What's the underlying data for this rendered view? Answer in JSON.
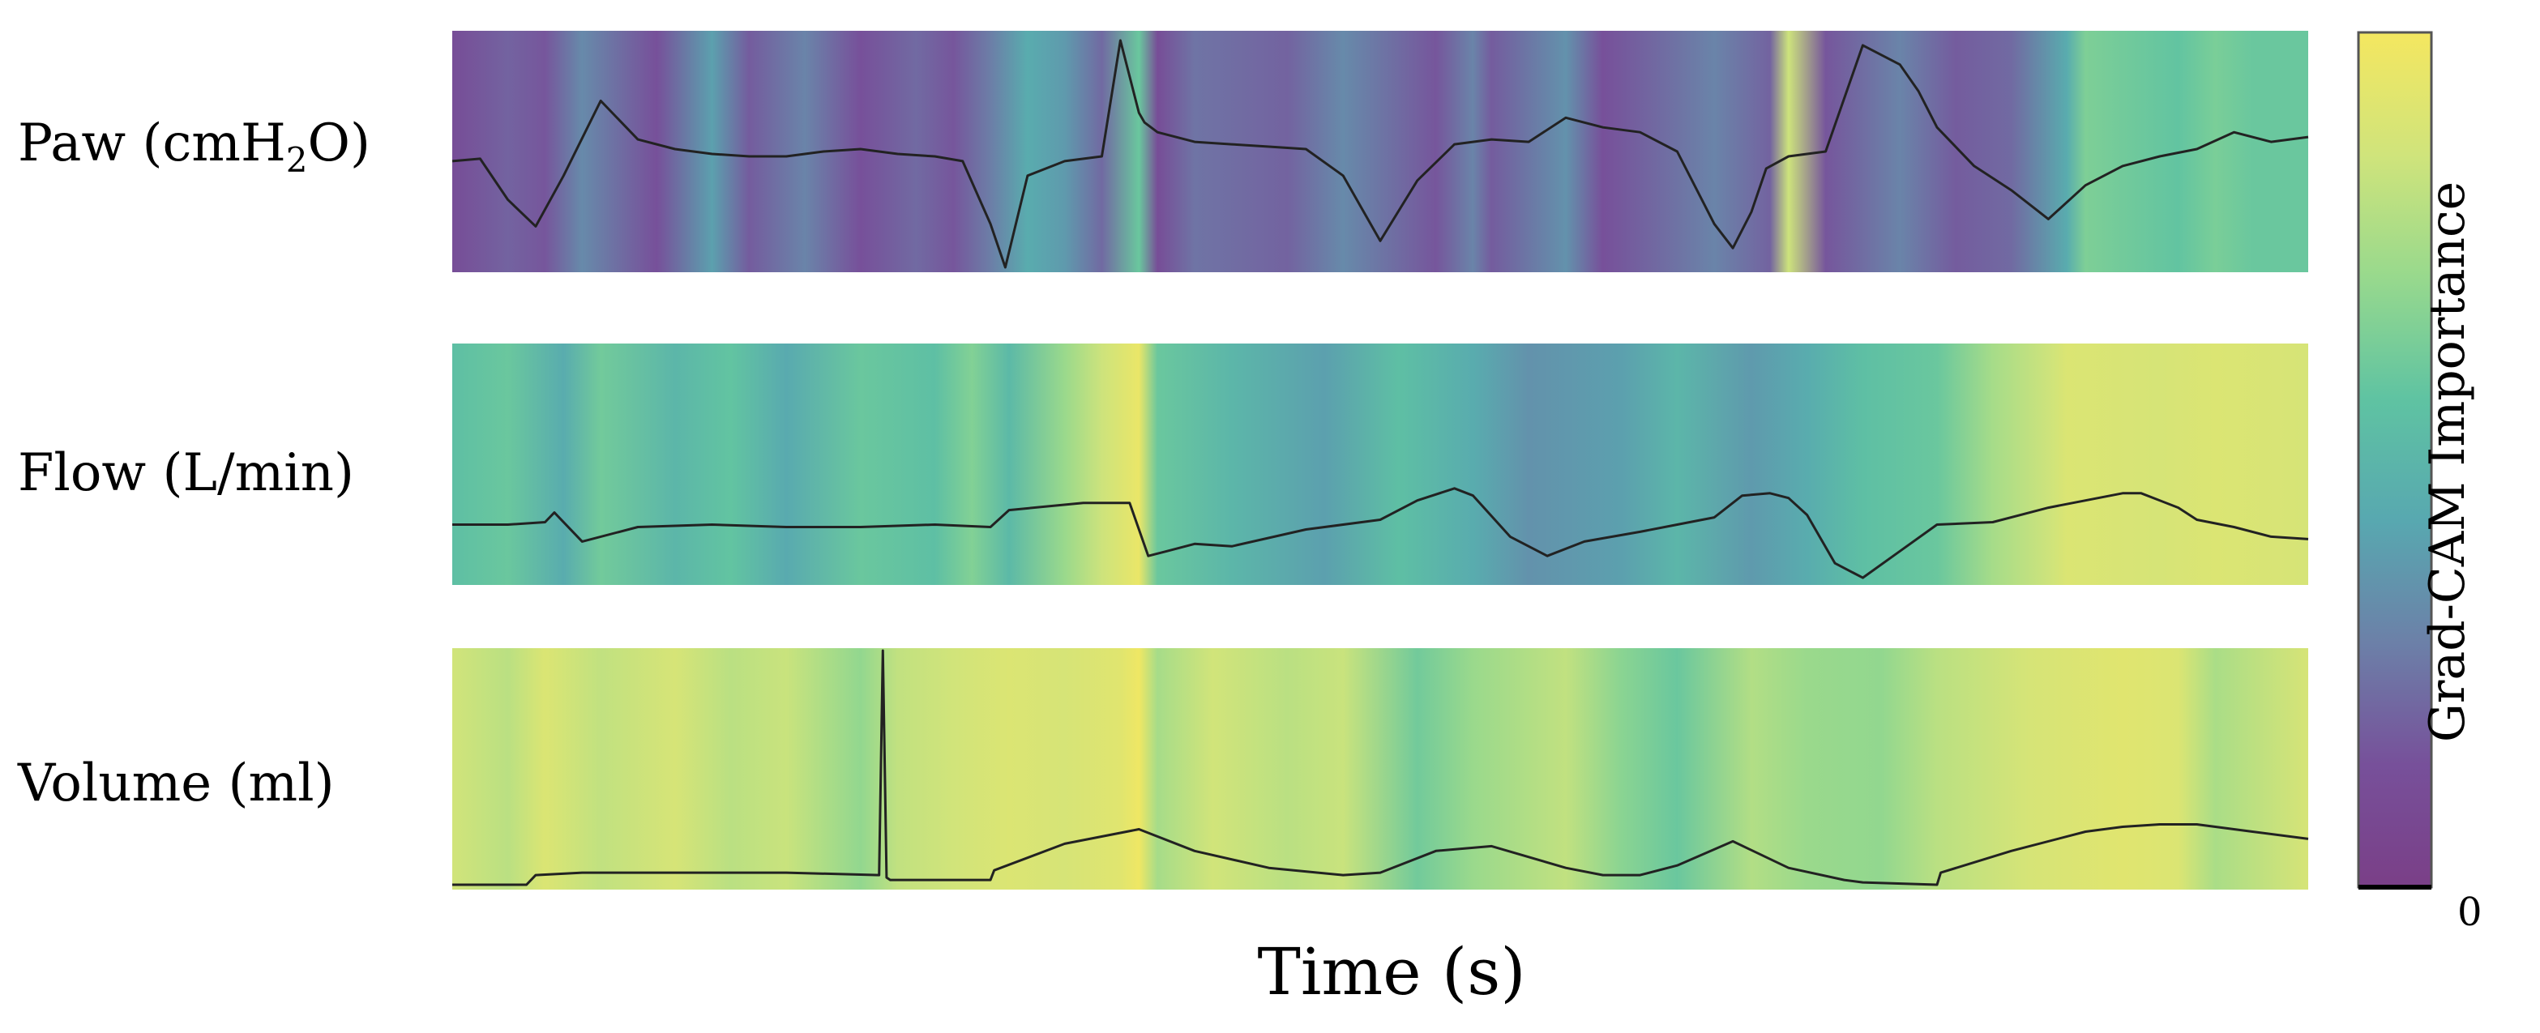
{
  "chart_data": [
    {
      "type": "line",
      "title": "",
      "ylabel_prefix": "Paw (cmH",
      "ylabel_sub": "2",
      "ylabel_suffix": "O)",
      "xlabel": "Time (s)",
      "x_range": [
        0,
        100
      ],
      "ylim": [
        0,
        10
      ],
      "x": [
        0,
        1.5,
        3,
        4.5,
        6,
        8,
        10,
        12,
        14,
        16,
        18,
        20,
        22,
        24,
        26,
        27.5,
        29,
        29.8,
        31,
        33,
        35,
        36,
        37,
        37.3,
        38,
        40,
        42,
        44,
        46,
        48,
        50,
        52,
        54,
        56,
        58,
        60,
        62,
        64,
        66,
        68,
        69,
        70,
        70.8,
        72,
        74,
        76,
        78,
        79,
        80,
        82,
        84,
        86,
        88,
        90,
        92,
        94,
        96,
        98,
        100
      ],
      "values": [
        4.6,
        4.7,
        3.0,
        1.9,
        4.0,
        7.1,
        5.5,
        5.1,
        4.9,
        4.8,
        4.8,
        5.0,
        5.1,
        4.9,
        4.8,
        4.6,
        2.0,
        0.2,
        4.0,
        4.6,
        4.8,
        9.6,
        6.6,
        6.2,
        5.8,
        5.4,
        5.3,
        5.2,
        5.1,
        4.0,
        1.3,
        3.8,
        5.3,
        5.5,
        5.4,
        6.4,
        6.0,
        5.8,
        5.0,
        2.0,
        1.0,
        2.5,
        4.3,
        4.8,
        5.0,
        9.4,
        8.6,
        7.5,
        6.0,
        4.4,
        3.4,
        2.2,
        3.6,
        4.4,
        4.8,
        5.1,
        5.8,
        5.4,
        5.6
      ],
      "importance_x": [
        0,
        3,
        5,
        7,
        11,
        14,
        16,
        19,
        22,
        25,
        27,
        29,
        31,
        33,
        35,
        37,
        38,
        40,
        45,
        48,
        53,
        55,
        56,
        60,
        62,
        68,
        71,
        72,
        74,
        78,
        81,
        84,
        87,
        88,
        90,
        93,
        95,
        97,
        100
      ],
      "importance_values": [
        0.12,
        0.2,
        0.16,
        0.32,
        0.14,
        0.4,
        0.18,
        0.3,
        0.14,
        0.22,
        0.16,
        0.28,
        0.45,
        0.38,
        0.22,
        0.6,
        0.12,
        0.25,
        0.2,
        0.32,
        0.16,
        0.3,
        0.18,
        0.35,
        0.14,
        0.3,
        0.2,
        0.85,
        0.16,
        0.3,
        0.18,
        0.22,
        0.45,
        0.65,
        0.62,
        0.58,
        0.64,
        0.6,
        0.6
      ]
    },
    {
      "type": "line",
      "title": "",
      "ylabel": "Flow (L/min)",
      "xlabel": "Time (s)",
      "x_range": [
        0,
        100
      ],
      "ylim": [
        0,
        10
      ],
      "x": [
        0,
        3,
        5,
        5.5,
        7,
        10,
        14,
        18,
        22,
        26,
        29,
        30,
        34,
        36.5,
        37.5,
        38.5,
        40,
        42,
        46,
        50,
        52,
        54,
        55,
        57,
        59,
        61,
        64,
        66,
        68,
        69.5,
        71,
        72,
        73,
        74.5,
        76,
        78,
        80,
        83,
        86,
        88,
        90,
        91,
        93,
        94,
        96,
        98,
        100
      ],
      "values": [
        2.5,
        2.5,
        2.6,
        3.0,
        1.8,
        2.4,
        2.5,
        2.4,
        2.4,
        2.5,
        2.4,
        3.1,
        3.4,
        3.4,
        1.2,
        1.4,
        1.7,
        1.6,
        2.3,
        2.7,
        3.5,
        4.0,
        3.7,
        2.0,
        1.2,
        1.8,
        2.2,
        2.5,
        2.8,
        3.7,
        3.8,
        3.6,
        2.9,
        0.9,
        0.3,
        1.4,
        2.5,
        2.6,
        3.2,
        3.5,
        3.8,
        3.8,
        3.2,
        2.7,
        2.4,
        2.0,
        1.9
      ],
      "importance_x": [
        0,
        3,
        6,
        8,
        12,
        15,
        18,
        22,
        26,
        28,
        30,
        33,
        35,
        37,
        38,
        42,
        47,
        51,
        55,
        58,
        63,
        66,
        70,
        73,
        76,
        80,
        83,
        86,
        87,
        92,
        95,
        100
      ],
      "importance_values": [
        0.55,
        0.6,
        0.45,
        0.62,
        0.5,
        0.58,
        0.44,
        0.6,
        0.55,
        0.66,
        0.52,
        0.72,
        0.85,
        0.96,
        0.6,
        0.5,
        0.4,
        0.55,
        0.45,
        0.35,
        0.4,
        0.5,
        0.38,
        0.45,
        0.55,
        0.6,
        0.75,
        0.85,
        0.9,
        0.88,
        0.9,
        0.88
      ]
    },
    {
      "type": "line",
      "title": "",
      "ylabel": "Volume (ml)",
      "xlabel": "Time (s)",
      "x_range": [
        0,
        100
      ],
      "ylim": [
        0,
        10
      ],
      "x": [
        0,
        4,
        4.5,
        7,
        12,
        18,
        23,
        23.2,
        23.4,
        23.6,
        24,
        29,
        29.2,
        33,
        37,
        40,
        44,
        48,
        50,
        53,
        56,
        60,
        62,
        64,
        66,
        69,
        72,
        75,
        76,
        80,
        80.2,
        84,
        88,
        90,
        92,
        94,
        97,
        100
      ],
      "values": [
        0.2,
        0.2,
        0.6,
        0.7,
        0.7,
        0.7,
        0.6,
        9.9,
        0.5,
        0.4,
        0.4,
        0.4,
        0.8,
        1.9,
        2.5,
        1.6,
        0.9,
        0.6,
        0.7,
        1.6,
        1.8,
        0.9,
        0.6,
        0.6,
        1.0,
        2.0,
        0.9,
        0.4,
        0.3,
        0.2,
        0.7,
        1.6,
        2.4,
        2.6,
        2.7,
        2.7,
        2.4,
        2.1
      ],
      "importance_x": [
        0,
        3,
        5,
        8,
        12,
        15,
        18,
        22,
        24,
        27,
        30,
        33,
        36,
        37,
        38,
        41,
        45,
        48,
        52,
        55,
        60,
        63,
        66,
        70,
        73,
        77,
        80,
        85,
        90,
        93,
        95,
        100
      ],
      "importance_values": [
        0.86,
        0.8,
        0.9,
        0.82,
        0.88,
        0.8,
        0.84,
        0.7,
        0.82,
        0.86,
        0.9,
        0.88,
        0.92,
        0.98,
        0.75,
        0.86,
        0.8,
        0.84,
        0.62,
        0.72,
        0.82,
        0.68,
        0.6,
        0.78,
        0.72,
        0.7,
        0.8,
        0.88,
        0.92,
        0.9,
        0.76,
        0.88
      ]
    }
  ],
  "colorbar": {
    "label": "Grad-CAM Importance",
    "min_label": "0",
    "range": [
      0,
      1
    ],
    "colormap": [
      "#7a3f87",
      "#77509a",
      "#6c80a8",
      "#58a8b0",
      "#5fc3a2",
      "#98d98d",
      "#d0e47b",
      "#f4e760"
    ]
  },
  "xlabel": "Time (s)",
  "line_color": "#222222"
}
